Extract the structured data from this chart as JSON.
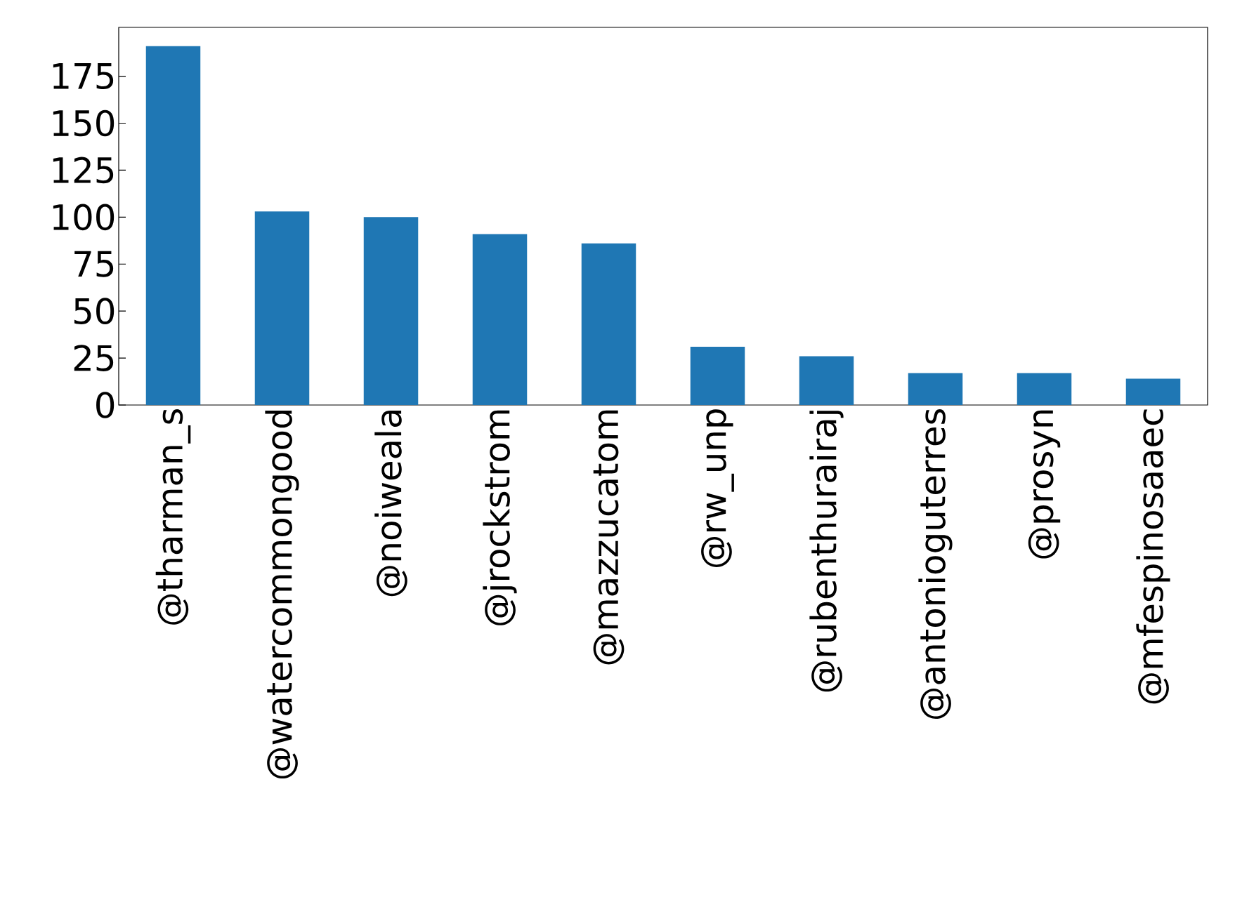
{
  "chart_data": {
    "type": "bar",
    "categories": [
      "@tharman_s",
      "@watercommongood",
      "@noiweala",
      "@jrockstrom",
      "@mazzucatom",
      "@rw_unp",
      "@rubenthurairaj",
      "@antonioguterres",
      "@prosyn",
      "@mfespinosaaec"
    ],
    "values": [
      191,
      103,
      100,
      91,
      86,
      31,
      26,
      17,
      17,
      14
    ],
    "color": "#1f77b4",
    "ylim": [
      0,
      201
    ],
    "yticks": [
      0,
      25,
      50,
      75,
      100,
      125,
      150,
      175
    ]
  }
}
